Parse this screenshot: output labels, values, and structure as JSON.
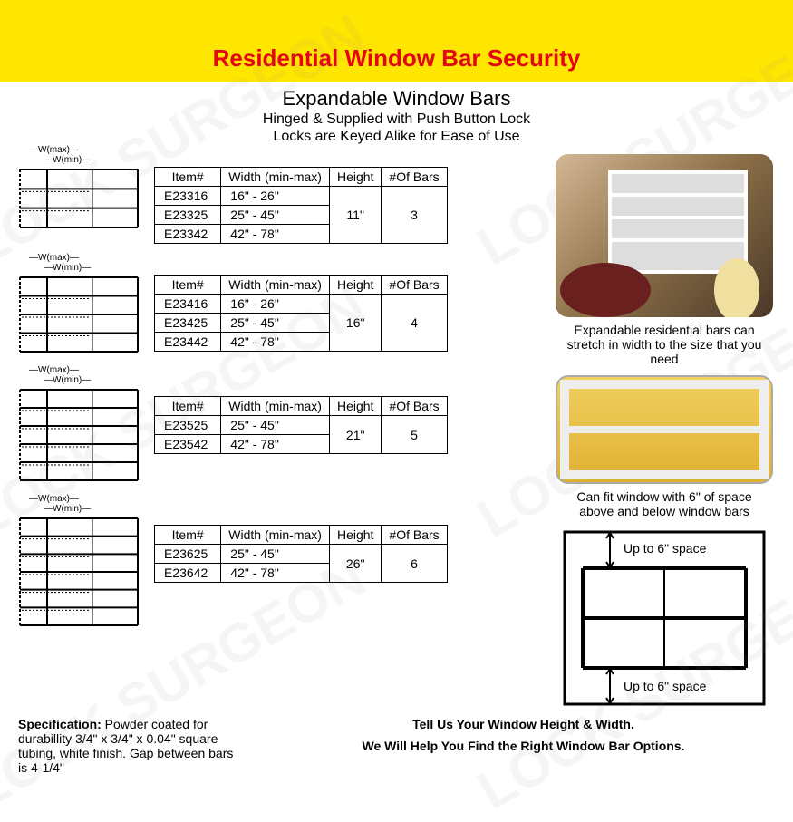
{
  "header": {
    "title": "Residential Window Bar Security"
  },
  "subheader": {
    "line1": "Expandable Window Bars",
    "line2": "Hinged & Supplied with Push Button Lock",
    "line3": "Locks are Keyed Alike for Ease of Use"
  },
  "tables": [
    {
      "columns": [
        "Item#",
        "Width (min-max)",
        "Height",
        "#Of Bars"
      ],
      "rows": [
        [
          "E23316",
          "16\" - 26\""
        ],
        [
          "E23325",
          "25\" - 45\""
        ],
        [
          "E23342",
          "42\" - 78\""
        ]
      ],
      "height": "11\"",
      "bars": "3",
      "diagram_bars": 3
    },
    {
      "columns": [
        "Item#",
        "Width (min-max)",
        "Height",
        "#Of Bars"
      ],
      "rows": [
        [
          "E23416",
          "16\" - 26\""
        ],
        [
          "E23425",
          "25\" - 45\""
        ],
        [
          "E23442",
          "42\" - 78\""
        ]
      ],
      "height": "16\"",
      "bars": "4",
      "diagram_bars": 4
    },
    {
      "columns": [
        "Item#",
        "Width (min-max)",
        "Height",
        "#Of Bars"
      ],
      "rows": [
        [
          "E23525",
          "25\" - 45\""
        ],
        [
          "E23542",
          "42\" - 78\""
        ]
      ],
      "height": "21\"",
      "bars": "5",
      "diagram_bars": 5
    },
    {
      "columns": [
        "Item#",
        "Width (min-max)",
        "Height",
        "#Of Bars"
      ],
      "rows": [
        [
          "E23625",
          "25\" - 45\""
        ],
        [
          "E23642",
          "42\" - 78\""
        ]
      ],
      "height": "26\"",
      "bars": "6",
      "diagram_bars": 6
    }
  ],
  "diagram_labels": {
    "wmax": "W(max)",
    "wmin": "W(min)"
  },
  "right": {
    "caption1": "Expandable residential bars can stretch in width to the size that you need",
    "caption2": "Can fit window with 6\" of space above and below window bars",
    "label_top": "Up to 6\" space",
    "label_bot": "Up to 6\" space"
  },
  "footer": {
    "spec_bold": "Specification:",
    "spec_text": " Powder coated for durabillity 3/4\" x 3/4\" x 0.04\" square tubing, white finish. Gap between bars is 4-1/4\"",
    "cta1": "Tell Us Your Window Height & Width.",
    "cta2": "We Will Help You Find the Right Window Bar Options."
  },
  "watermark_text": "LOCK SURGEON",
  "colors": {
    "header_bg": "#ffe600",
    "title": "#e30613",
    "text": "#000000",
    "border": "#000000"
  }
}
